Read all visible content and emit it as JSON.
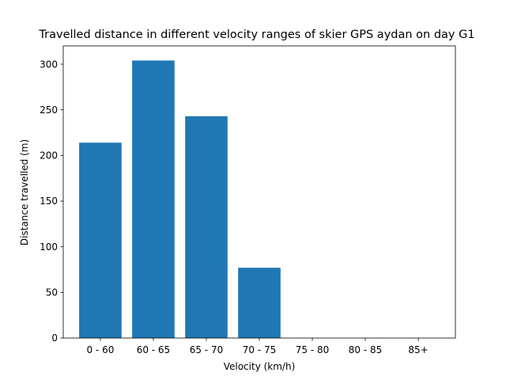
{
  "chart_data": {
    "type": "bar",
    "title": "Travelled distance in different velocity ranges of skier GPS aydan on day G1",
    "xlabel": "Velocity (km/h)",
    "ylabel": "Distance travelled (m)",
    "categories": [
      "0 - 60",
      "60 - 65",
      "65 - 70",
      "70 - 75",
      "75 - 80",
      "80 - 85",
      "85+"
    ],
    "values": [
      214,
      304,
      243,
      77,
      0,
      0,
      0
    ],
    "ylim": [
      0,
      320
    ],
    "yticks": [
      0,
      50,
      100,
      150,
      200,
      250,
      300
    ],
    "bar_color": "#1f77b4",
    "grid": false,
    "legend": "none"
  }
}
